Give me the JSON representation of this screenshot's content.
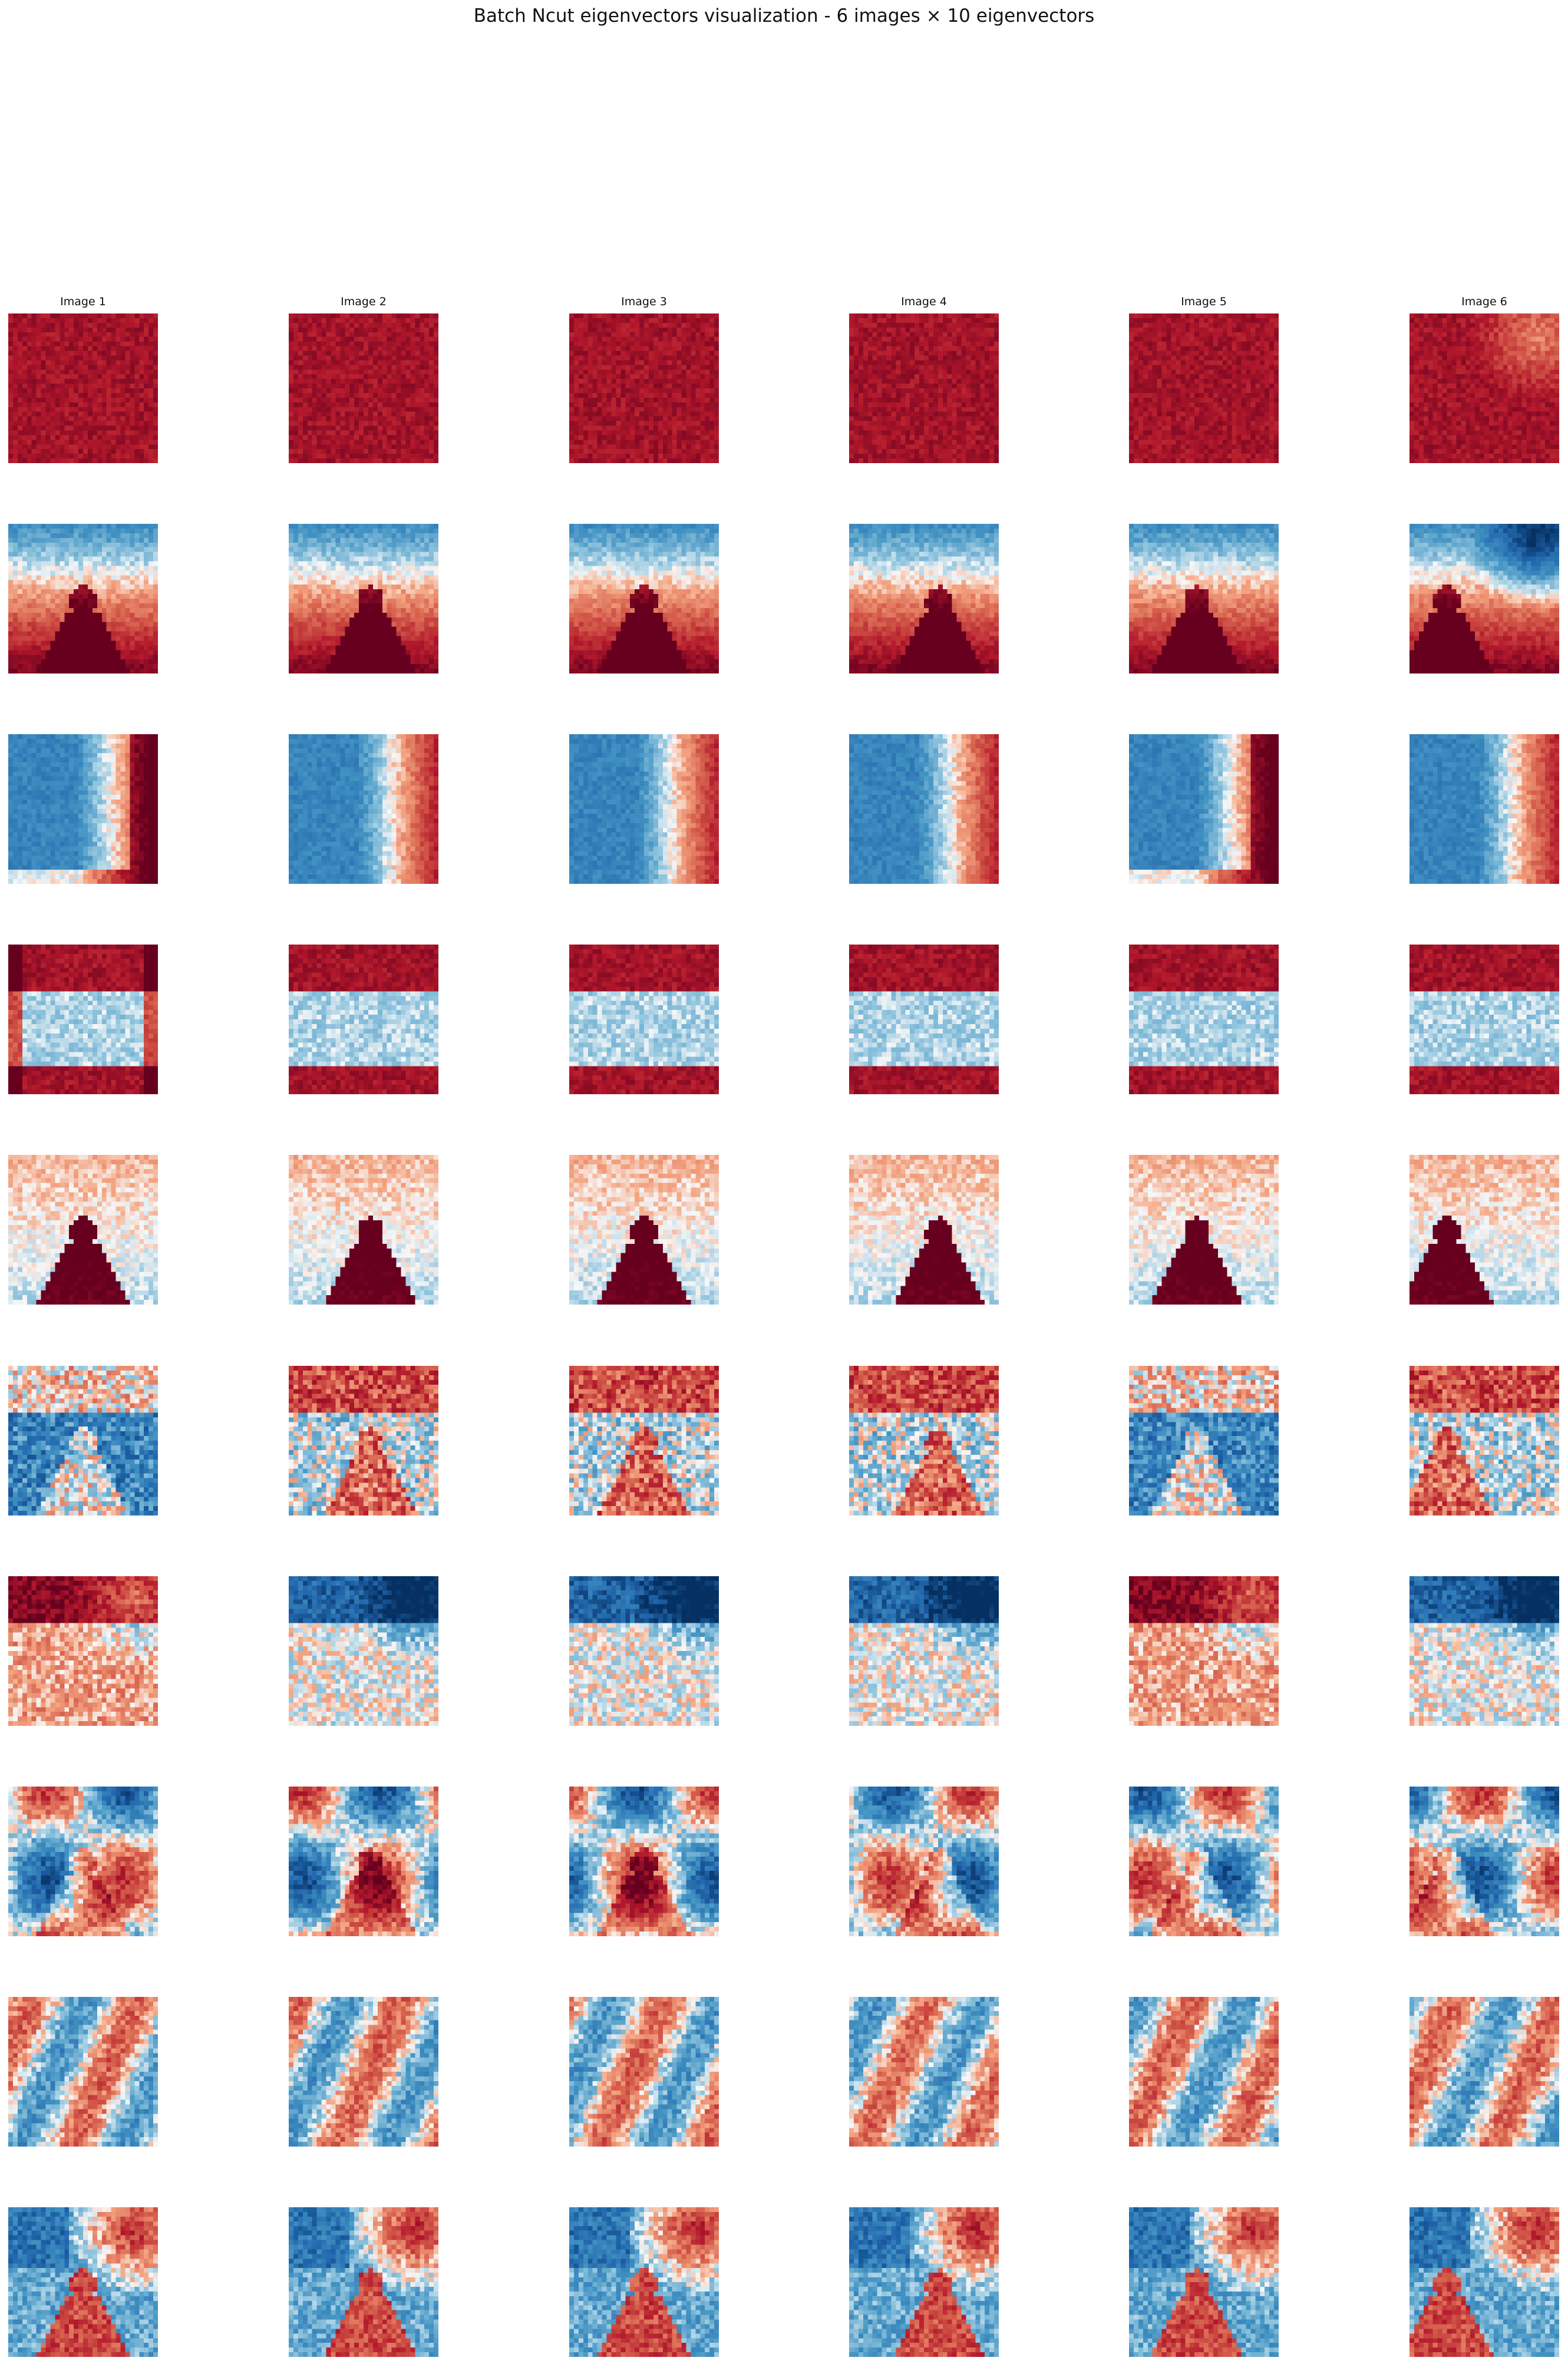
{
  "title": "Batch Ncut eigenvectors visualization - 6 images × 10 eigenvectors",
  "chart_data": {
    "type": "heatmap",
    "title": "Batch Ncut eigenvectors visualization - 6 images × 10 eigenvectors",
    "colormap": "RdBu_r",
    "axes_visible": false,
    "columns": [
      "Image 1",
      "Image 2",
      "Image 3",
      "Image 4",
      "Image 5",
      "Image 6"
    ],
    "rows": 10,
    "colors": {
      "deep_red": "#a50026",
      "red": "#d6604d",
      "light_red": "#f4a582",
      "white": "#f7f7f7",
      "light_blue": "#92c5de",
      "blue": "#4393c3",
      "deep_blue": "#2166ac"
    }
  }
}
